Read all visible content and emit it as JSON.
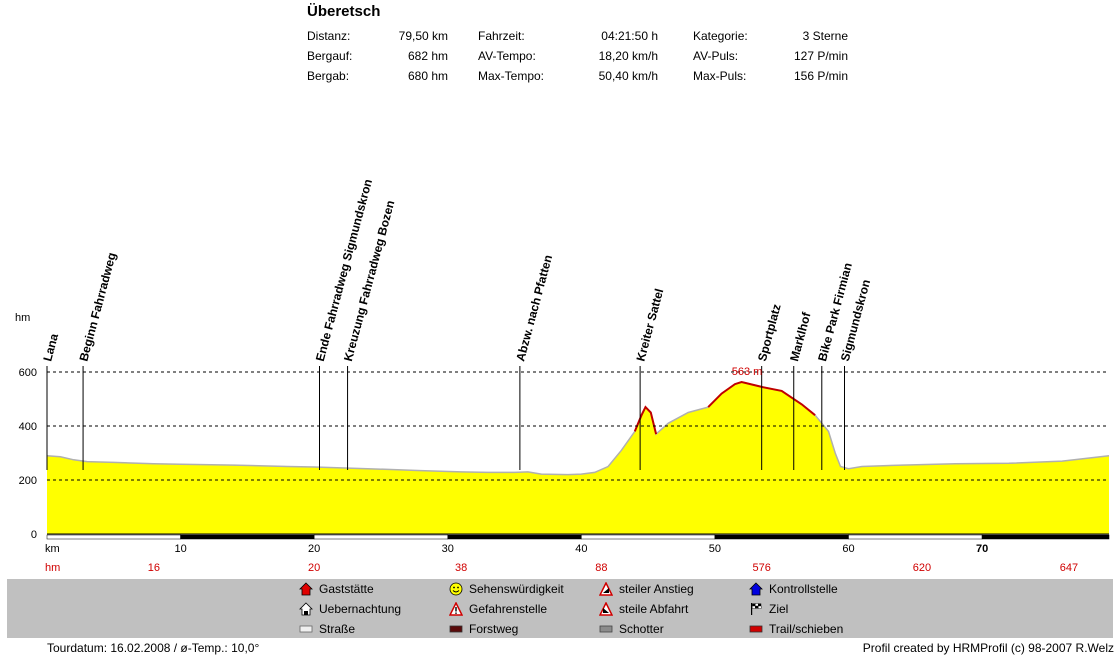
{
  "header": {
    "title": "Überetsch",
    "stats": [
      [
        {
          "label": "Distanz:",
          "value": "79,50 km"
        },
        {
          "label": "Fahrzeit:",
          "value": "04:21:50 h"
        },
        {
          "label": "Kategorie:",
          "value": "3 Sterne"
        }
      ],
      [
        {
          "label": "Bergauf:",
          "value": "682 hm"
        },
        {
          "label": "AV-Tempo:",
          "value": "18,20 km/h"
        },
        {
          "label": "AV-Puls:",
          "value": "127 P/min"
        }
      ],
      [
        {
          "label": "Bergab:",
          "value": "680 hm"
        },
        {
          "label": "Max-Tempo:",
          "value": "50,40 km/h"
        },
        {
          "label": "Max-Puls:",
          "value": "156 P/min"
        }
      ]
    ]
  },
  "chart_data": {
    "type": "area",
    "title": "Überetsch",
    "ylabel": "hm",
    "xlabel": "km",
    "xlim": [
      0,
      79.5
    ],
    "ylim": [
      0,
      600
    ],
    "yticks": [
      "0",
      "200",
      "400",
      "600"
    ],
    "xticks": [
      "10",
      "20",
      "30",
      "40",
      "50",
      "60",
      "70"
    ],
    "grid": "dashed at 200, 400, 600",
    "fill_color": "#ffff00",
    "outline_color": "#b0b0b0",
    "steep_color": "#c00000",
    "max_label": "563 m",
    "elevation": [
      [
        0,
        290
      ],
      [
        1,
        286
      ],
      [
        2,
        275
      ],
      [
        3,
        268
      ],
      [
        5,
        265
      ],
      [
        8,
        260
      ],
      [
        10,
        258
      ],
      [
        14,
        255
      ],
      [
        18,
        250
      ],
      [
        20,
        248
      ],
      [
        24,
        242
      ],
      [
        28,
        235
      ],
      [
        31,
        230
      ],
      [
        33,
        228
      ],
      [
        35,
        228
      ],
      [
        36,
        230
      ],
      [
        37,
        222
      ],
      [
        39,
        220
      ],
      [
        40,
        222
      ],
      [
        41,
        228
      ],
      [
        42,
        250
      ],
      [
        43,
        310
      ],
      [
        44,
        380
      ],
      [
        44.5,
        440
      ],
      [
        44.8,
        470
      ],
      [
        45.2,
        450
      ],
      [
        45.6,
        370
      ],
      [
        46.5,
        410
      ],
      [
        48,
        450
      ],
      [
        49.5,
        470
      ],
      [
        50.5,
        520
      ],
      [
        51.5,
        555
      ],
      [
        52,
        563
      ],
      [
        53.5,
        545
      ],
      [
        55,
        530
      ],
      [
        56.5,
        480
      ],
      [
        57.5,
        440
      ],
      [
        58.5,
        380
      ],
      [
        59,
        300
      ],
      [
        59.4,
        250
      ],
      [
        60,
        242
      ],
      [
        61,
        250
      ],
      [
        64,
        255
      ],
      [
        68,
        260
      ],
      [
        72,
        262
      ],
      [
        76,
        270
      ],
      [
        79.5,
        290
      ]
    ],
    "steep_ranges": [
      [
        43.5,
        46
      ],
      [
        48.5,
        58
      ]
    ],
    "pois": [
      {
        "km": 0,
        "name": "Lana",
        "label_km": "",
        "label_hm": ""
      },
      {
        "km": 2.7,
        "name": "Beginn Fahrradweg",
        "label_km": "",
        "label_hm": ""
      },
      {
        "km": 20.4,
        "name": "Ende Fahrradweg Sigmundskron",
        "label_km": "",
        "label_hm": ""
      },
      {
        "km": 22.5,
        "name": "Kreuzung Fahrradweg Bozen",
        "label_km": "",
        "label_hm": ""
      },
      {
        "km": 35.4,
        "name": "Abzw. nach Pfatten",
        "label_km": "",
        "label_hm": ""
      },
      {
        "km": 44.4,
        "name": "Kreiter Sattel",
        "label_km": "",
        "label_hm": ""
      },
      {
        "km": 53.5,
        "name": "Sportplatz",
        "label_km": "",
        "label_hm": ""
      },
      {
        "km": 55.9,
        "name": "Marklhof",
        "label_km": "",
        "label_hm": ""
      },
      {
        "km": 58,
        "name": "Bike Park Firmian",
        "label_km": "",
        "label_hm": ""
      },
      {
        "km": 59.7,
        "name": "Sigmundskron",
        "label_km": "",
        "label_hm": ""
      }
    ],
    "hm_row": {
      "label": "hm",
      "values": [
        {
          "km": 8,
          "text": "16"
        },
        {
          "km": 20,
          "text": "20"
        },
        {
          "km": 31,
          "text": "38"
        },
        {
          "km": 41.5,
          "text": "88"
        },
        {
          "km": 53.5,
          "text": "576"
        },
        {
          "km": 65.5,
          "text": "620"
        },
        {
          "km": 76.5,
          "text": "647"
        }
      ]
    }
  },
  "legend": {
    "items": [
      {
        "label": "Gaststätte",
        "icon": "house-red-icon"
      },
      {
        "label": "Uebernachtung",
        "icon": "house-white-icon"
      },
      {
        "label": "Straße",
        "icon": "road-white-icon"
      },
      {
        "label": "Sehenswürdigkeit",
        "icon": "smiley-icon"
      },
      {
        "label": "Gefahrenstelle",
        "icon": "warning-icon"
      },
      {
        "label": "Forstweg",
        "icon": "forest-road-icon"
      },
      {
        "label": "steiler Anstieg",
        "icon": "steep-up-icon"
      },
      {
        "label": "steile Abfahrt",
        "icon": "steep-down-icon"
      },
      {
        "label": "Schotter",
        "icon": "gravel-icon"
      },
      {
        "label": "Kontrollstelle",
        "icon": "checkpoint-blue-icon"
      },
      {
        "label": "Ziel",
        "icon": "finish-flag-icon"
      },
      {
        "label": "Trail/schieben",
        "icon": "trail-red-icon"
      }
    ]
  },
  "footer": {
    "left": "Tourdatum: 16.02.2008  /  ø-Temp.: 10,0°",
    "right": "Profil created by HRMProfil (c) 98-2007 R.Welz"
  }
}
